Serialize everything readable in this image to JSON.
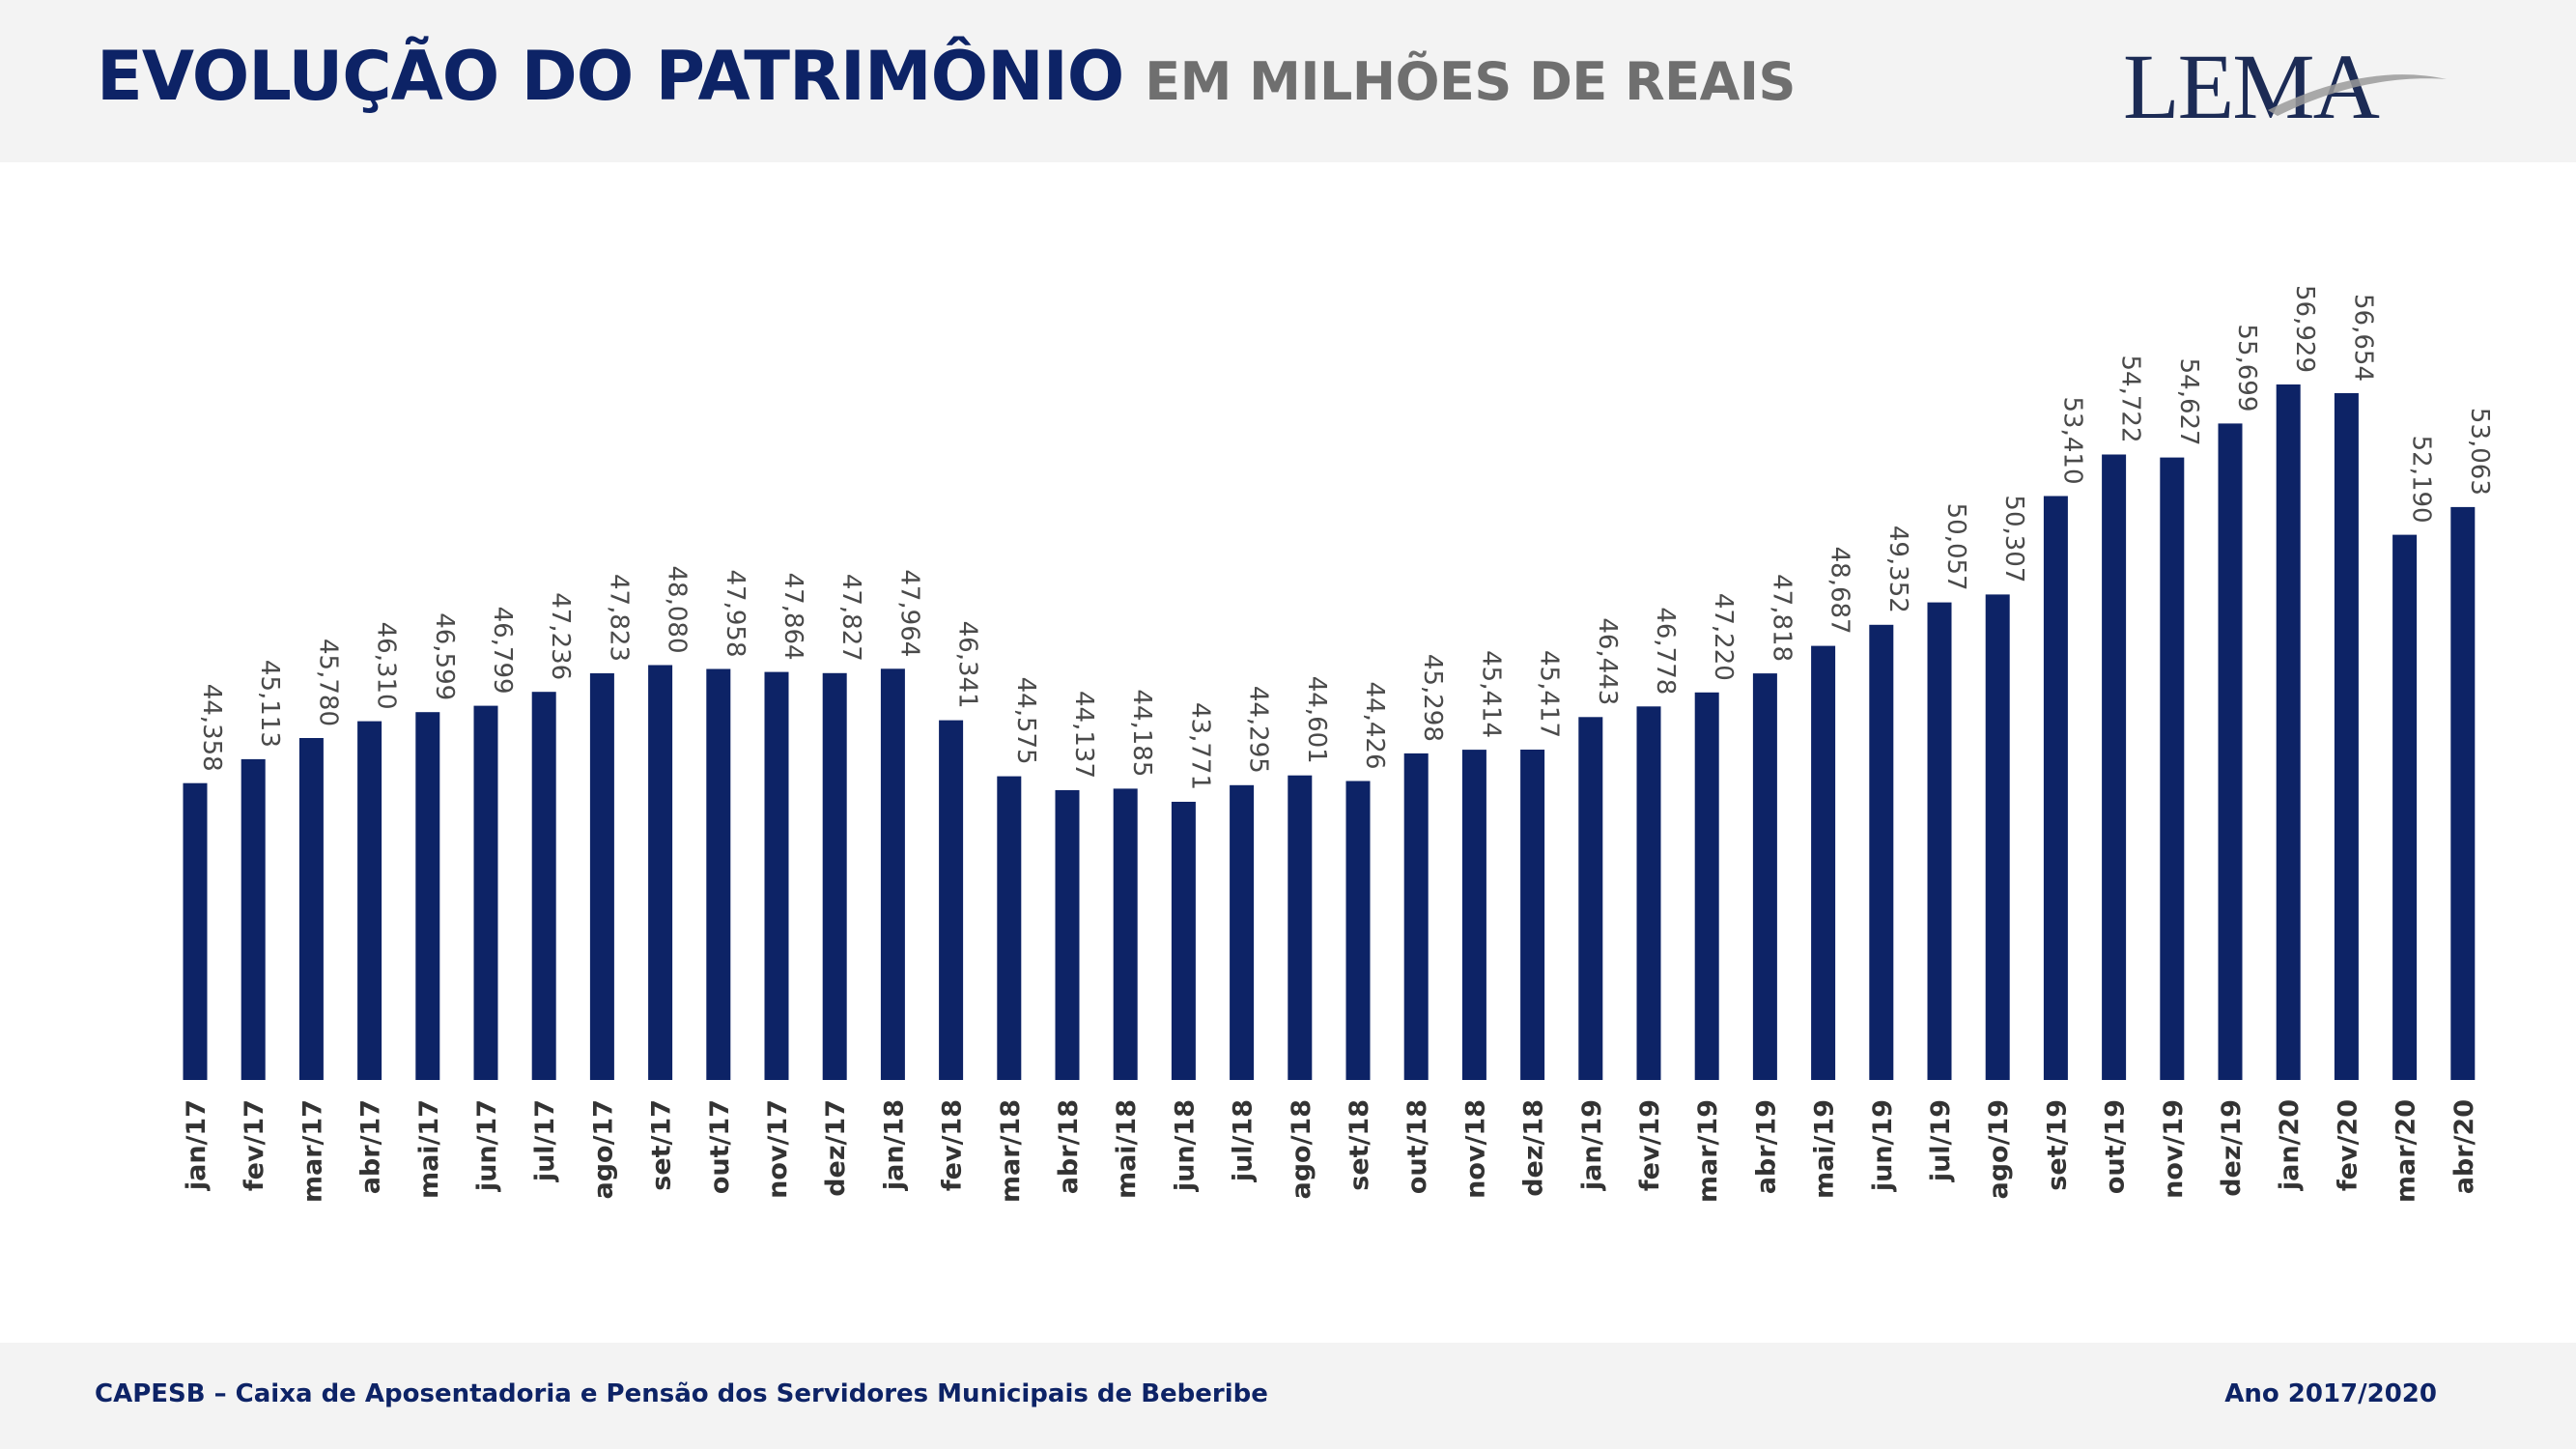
{
  "header": {
    "title": "EVOLUÇÃO DO PATRIMÔNIO",
    "subtitle": "EM MILHÕES DE REAIS",
    "logo_text": "LEMA"
  },
  "footer": {
    "left_text": "CAPESB – Caixa de Aposentadoria e Pensão dos Servidores Municipais de Beberibe",
    "right_text": "Ano 2017/2020"
  },
  "colors": {
    "bar": "#0d2366",
    "title": "#0d2366",
    "subtitle": "#6f6f6f",
    "value_label": "#4a4a4a",
    "category_label": "#333333"
  },
  "chart_data": {
    "type": "bar",
    "title": "EVOLUÇÃO DO PATRIMÔNIO EM MILHÕES DE REAIS",
    "xlabel": "",
    "ylabel": "",
    "ylim": [
      0,
      60
    ],
    "grid": false,
    "legend": "none",
    "categories": [
      "jan/17",
      "fev/17",
      "mar/17",
      "abr/17",
      "mai/17",
      "jun/17",
      "jul/17",
      "ago/17",
      "set/17",
      "out/17",
      "nov/17",
      "dez/17",
      "jan/18",
      "fev/18",
      "mar/18",
      "abr/18",
      "mai/18",
      "jun/18",
      "jul/18",
      "ago/18",
      "set/18",
      "out/18",
      "nov/18",
      "dez/18",
      "jan/19",
      "fev/19",
      "mar/19",
      "abr/19",
      "mai/19",
      "jun/19",
      "jul/19",
      "ago/19",
      "set/19",
      "out/19",
      "nov/19",
      "dez/19",
      "jan/20",
      "fev/20",
      "mar/20",
      "abr/20"
    ],
    "values": [
      44.358,
      45.113,
      45.78,
      46.31,
      46.599,
      46.799,
      47.236,
      47.823,
      48.08,
      47.958,
      47.864,
      47.827,
      47.964,
      46.341,
      44.575,
      44.137,
      44.185,
      43.771,
      44.295,
      44.601,
      44.426,
      45.298,
      45.414,
      45.417,
      46.443,
      46.778,
      47.22,
      47.818,
      48.687,
      49.352,
      50.057,
      50.307,
      53.41,
      54.722,
      54.627,
      55.699,
      56.929,
      56.654,
      52.19,
      53.063
    ],
    "value_labels": [
      "44,358",
      "45,113",
      "45,780",
      "46,310",
      "46,599",
      "46,799",
      "47,236",
      "47,823",
      "48,080",
      "47,958",
      "47,864",
      "47,827",
      "47,964",
      "46,341",
      "44,575",
      "44,137",
      "44,185",
      "43,771",
      "44,295",
      "44,601",
      "44,426",
      "45,298",
      "45,414",
      "45,417",
      "46,443",
      "46,778",
      "47,220",
      "47,818",
      "48,687",
      "49,352",
      "50,057",
      "50,307",
      "53,410",
      "54,722",
      "54,627",
      "55,699",
      "56,929",
      "56,654",
      "52,190",
      "53,063"
    ]
  }
}
